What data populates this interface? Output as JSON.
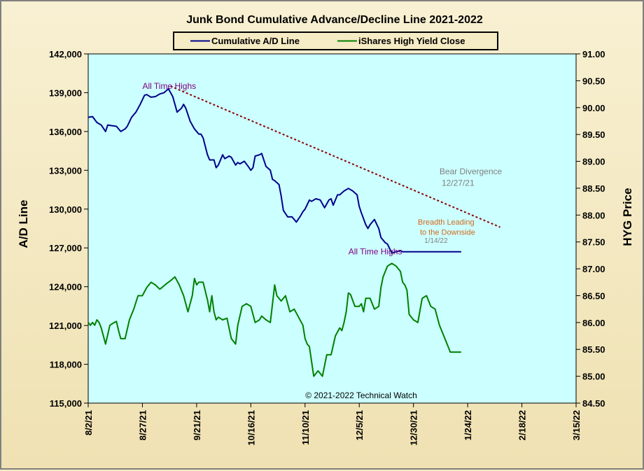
{
  "chart_data": {
    "type": "line",
    "title": "Junk Bond Cumulative Advance/Decline Line 2021-2022",
    "ylabel": "A/D Line",
    "y2label": "HYG Price",
    "copyright": "© 2021-2022 Technical Watch",
    "legend_placement": "top-center",
    "xlim": [
      "8/2/21",
      "3/15/22"
    ],
    "ylim": [
      115000,
      142000
    ],
    "y2lim": [
      84.5,
      91.0
    ],
    "grid": false,
    "x_ticks": [
      "8/2/21",
      "8/27/21",
      "9/21/21",
      "10/16/21",
      "11/10/21",
      "12/5/21",
      "12/30/21",
      "1/24/22",
      "2/18/22",
      "3/15/22"
    ],
    "x_tick_days": [
      0,
      25,
      50,
      75,
      100,
      125,
      150,
      175,
      200,
      225
    ],
    "y_ticks": [
      "115,000",
      "118,000",
      "121,000",
      "124,000",
      "127,000",
      "130,000",
      "133,000",
      "136,000",
      "139,000",
      "142,000"
    ],
    "y2_ticks": [
      "84.50",
      "85.00",
      "85.50",
      "86.00",
      "86.50",
      "87.00",
      "87.50",
      "88.00",
      "88.50",
      "89.00",
      "89.50",
      "90.00",
      "90.50",
      "91.00"
    ],
    "series": [
      {
        "name": "Cumulative A/D Line",
        "axis": "left",
        "color": "#00008b",
        "x": [
          0,
          2,
          4,
          6,
          8,
          9,
          11,
          13,
          15,
          17,
          18,
          20,
          22,
          24,
          26,
          27,
          29,
          31,
          33,
          35,
          37,
          39,
          41,
          43,
          44,
          45,
          47,
          49,
          51,
          52,
          53,
          55,
          56,
          58,
          59,
          60,
          62,
          63,
          65,
          66,
          68,
          69,
          70,
          72,
          74,
          75,
          76,
          77,
          79,
          80,
          82,
          84,
          85,
          86,
          88,
          89,
          90,
          92,
          94,
          96,
          98,
          99,
          100,
          102,
          103,
          105,
          107,
          109,
          111,
          112,
          113,
          115,
          116,
          118,
          119,
          120,
          122,
          124,
          125,
          126,
          128,
          129,
          130,
          132,
          134,
          135,
          137,
          138,
          140,
          142,
          144,
          145,
          147,
          149,
          151,
          152,
          153,
          155,
          157,
          159,
          161,
          163,
          164,
          166,
          168,
          169,
          170,
          172
        ],
        "y": [
          137100,
          137150,
          136700,
          136500,
          136000,
          136500,
          136450,
          136400,
          136000,
          136200,
          136400,
          137100,
          137500,
          138100,
          138800,
          138850,
          138650,
          138700,
          138900,
          139000,
          139300,
          138700,
          137500,
          137800,
          138100,
          137800,
          136800,
          136200,
          135800,
          135800,
          135500,
          134200,
          133800,
          133800,
          133200,
          133400,
          134200,
          133900,
          134100,
          134000,
          133400,
          133600,
          133500,
          133700,
          133250,
          133000,
          133200,
          134100,
          134200,
          134300,
          133300,
          133000,
          132300,
          132200,
          131900,
          131000,
          129900,
          129400,
          129400,
          129000,
          129500,
          129800,
          130000,
          130700,
          130600,
          130800,
          130700,
          130100,
          130700,
          130800,
          130300,
          131100,
          131100,
          131400,
          131500,
          131600,
          131400,
          131100,
          130200,
          129700,
          128800,
          128500,
          128800,
          129200,
          128500,
          127800,
          127400,
          127300,
          126600,
          126700,
          126800,
          126700,
          126700,
          126700,
          126700,
          126700,
          126700,
          126700,
          126700,
          126700,
          126700,
          126700,
          126700,
          126700,
          126700,
          126700,
          126700,
          126700
        ]
      },
      {
        "name": "iShares High Yield Close",
        "axis": "right",
        "color": "#008000",
        "x": [
          0,
          1,
          2,
          3,
          4,
          5,
          6,
          7,
          8,
          10,
          12,
          13,
          14,
          15,
          17,
          19,
          20,
          21,
          23,
          25,
          27,
          29,
          31,
          33,
          34,
          36,
          38,
          40,
          42,
          44,
          46,
          48,
          49,
          50,
          51,
          53,
          55,
          56,
          57,
          58,
          59,
          60,
          62,
          64,
          66,
          68,
          69,
          71,
          73,
          75,
          77,
          79,
          80,
          82,
          84,
          86,
          87,
          89,
          91,
          93,
          95,
          97,
          99,
          100,
          101,
          102,
          104,
          106,
          108,
          110,
          112,
          114,
          116,
          117,
          118,
          119,
          120,
          121,
          123,
          125,
          126,
          127,
          128,
          130,
          132,
          134,
          135,
          136,
          138,
          140,
          142,
          144,
          145,
          146,
          147,
          148,
          150,
          152,
          154,
          156,
          157,
          158,
          160,
          161,
          162,
          164,
          166,
          167,
          168,
          170,
          172
        ],
        "y": [
          86.0,
          85.95,
          86.0,
          85.95,
          86.05,
          86.0,
          85.9,
          85.75,
          85.6,
          85.95,
          86.0,
          86.02,
          85.85,
          85.7,
          85.7,
          86.05,
          86.15,
          86.25,
          86.5,
          86.5,
          86.65,
          86.75,
          86.7,
          86.62,
          86.65,
          86.72,
          86.78,
          86.85,
          86.7,
          86.5,
          86.2,
          86.5,
          86.82,
          86.7,
          86.75,
          86.75,
          86.42,
          86.2,
          86.5,
          86.2,
          86.05,
          86.1,
          86.05,
          86.08,
          85.7,
          85.6,
          85.95,
          86.3,
          86.35,
          86.3,
          86.0,
          86.05,
          86.12,
          86.05,
          86.0,
          86.7,
          86.5,
          86.4,
          86.5,
          86.2,
          86.25,
          86.1,
          85.95,
          85.7,
          85.6,
          85.55,
          85.0,
          85.1,
          85.0,
          85.4,
          85.4,
          85.75,
          85.9,
          85.85,
          86.0,
          86.2,
          86.55,
          86.52,
          86.3,
          86.3,
          86.35,
          86.2,
          86.45,
          86.45,
          86.25,
          86.3,
          86.65,
          86.85,
          87.05,
          87.1,
          87.05,
          86.95,
          86.75,
          86.7,
          86.6,
          86.15,
          86.05,
          86.0,
          86.45,
          86.5,
          86.4,
          86.3,
          86.25,
          86.1,
          85.95,
          85.75,
          85.55,
          85.45,
          85.45,
          85.45,
          85.45
        ]
      }
    ],
    "trendline": {
      "x": [
        38,
        190
      ],
      "y": [
        139500,
        128600
      ],
      "color": "#8b0000"
    },
    "annotations": [
      {
        "id": "ath-ad",
        "text": "All Time Highs",
        "x": 25,
        "y": 139300,
        "axis": "left",
        "color": "#800080"
      },
      {
        "id": "bear-div",
        "text": "Bear Divergence",
        "x": 162,
        "y": 132700,
        "axis": "left",
        "color": "#808080"
      },
      {
        "id": "bear-div-date",
        "text": "12/27/21",
        "x": 163,
        "y": 131800,
        "axis": "left",
        "color": "#808080"
      },
      {
        "id": "breadth-1",
        "text": "Breadth Leading",
        "x": 152,
        "y": 128800,
        "axis": "left",
        "color": "#d2691e"
      },
      {
        "id": "breadth-2",
        "text": "to the Downside",
        "x": 153,
        "y": 128000,
        "axis": "left",
        "color": "#d2691e"
      },
      {
        "id": "breadth-date",
        "text": "1/14/22",
        "x": 155,
        "y": 127400,
        "axis": "left",
        "color": "#808080"
      },
      {
        "id": "ath-hyg",
        "text": "All Time Highs",
        "x": 120,
        "y": 126500,
        "axis": "left",
        "color": "#800080"
      }
    ]
  }
}
